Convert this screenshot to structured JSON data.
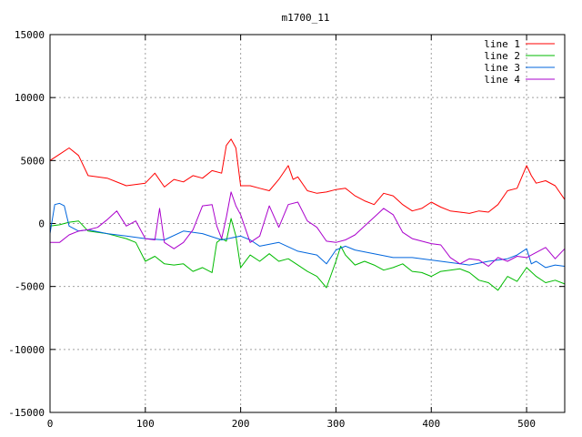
{
  "chart_data": {
    "type": "line",
    "title": "m1700_11",
    "xlim": [
      0,
      540
    ],
    "ylim": [
      -15000,
      15000
    ],
    "x_ticks": [
      0,
      100,
      200,
      300,
      400,
      500
    ],
    "y_ticks": [
      -15000,
      -10000,
      -5000,
      0,
      5000,
      10000,
      15000
    ],
    "grid": true,
    "legend_position": "top-right",
    "series": [
      {
        "name": "line 1",
        "color": "#ff0000",
        "x": [
          0,
          10,
          20,
          30,
          40,
          60,
          80,
          100,
          110,
          120,
          130,
          140,
          150,
          160,
          170,
          180,
          185,
          190,
          195,
          200,
          210,
          220,
          230,
          240,
          250,
          255,
          260,
          270,
          280,
          290,
          300,
          310,
          320,
          330,
          340,
          350,
          360,
          370,
          380,
          390,
          400,
          410,
          420,
          430,
          440,
          450,
          460,
          470,
          480,
          490,
          500,
          505,
          510,
          520,
          530,
          540
        ],
        "y": [
          5000,
          5500,
          6000,
          5400,
          3800,
          3600,
          3000,
          3200,
          4000,
          2900,
          3500,
          3300,
          3800,
          3600,
          4200,
          4000,
          6200,
          6700,
          6000,
          3000,
          3000,
          2800,
          2600,
          3500,
          4600,
          3500,
          3700,
          2600,
          2400,
          2500,
          2700,
          2800,
          2200,
          1800,
          1500,
          2400,
          2200,
          1500,
          1000,
          1200,
          1700,
          1300,
          1000,
          900,
          800,
          1000,
          900,
          1500,
          2600,
          2800,
          4600,
          3800,
          3200,
          3400,
          3000,
          1900
        ]
      },
      {
        "name": "line 2",
        "color": "#00bb00",
        "x": [
          0,
          10,
          20,
          30,
          40,
          60,
          80,
          90,
          100,
          110,
          120,
          130,
          140,
          150,
          160,
          170,
          175,
          180,
          185,
          190,
          195,
          200,
          210,
          220,
          230,
          240,
          250,
          260,
          270,
          280,
          290,
          300,
          305,
          310,
          320,
          330,
          340,
          350,
          360,
          370,
          380,
          390,
          400,
          410,
          420,
          430,
          440,
          450,
          460,
          470,
          480,
          490,
          500,
          510,
          520,
          530,
          540
        ],
        "y": [
          -200,
          -100,
          100,
          200,
          -600,
          -800,
          -1200,
          -1500,
          -3000,
          -2600,
          -3200,
          -3300,
          -3200,
          -3800,
          -3500,
          -3900,
          -1500,
          -1200,
          -1400,
          400,
          -1000,
          -3500,
          -2500,
          -3000,
          -2400,
          -3000,
          -2800,
          -3300,
          -3800,
          -4200,
          -5100,
          -3000,
          -1800,
          -2500,
          -3300,
          -3000,
          -3300,
          -3700,
          -3500,
          -3200,
          -3800,
          -3900,
          -4200,
          -3800,
          -3700,
          -3600,
          -3900,
          -4500,
          -4700,
          -5300,
          -4200,
          -4600,
          -3500,
          -4200,
          -4700,
          -4500,
          -4800
        ]
      },
      {
        "name": "line 3",
        "color": "#0066dd",
        "x": [
          0,
          5,
          10,
          15,
          20,
          30,
          40,
          60,
          80,
          100,
          120,
          140,
          160,
          180,
          200,
          210,
          220,
          240,
          260,
          280,
          290,
          300,
          310,
          320,
          340,
          360,
          380,
          400,
          420,
          440,
          460,
          480,
          490,
          500,
          505,
          510,
          520,
          530,
          540
        ],
        "y": [
          -800,
          1500,
          1600,
          1400,
          -200,
          -600,
          -500,
          -800,
          -1000,
          -1200,
          -1300,
          -600,
          -800,
          -1300,
          -1000,
          -1300,
          -1800,
          -1500,
          -2200,
          -2500,
          -3200,
          -2100,
          -1800,
          -2100,
          -2400,
          -2700,
          -2700,
          -2900,
          -3100,
          -3300,
          -3000,
          -2800,
          -2500,
          -2000,
          -3200,
          -3000,
          -3500,
          -3300,
          -3400
        ]
      },
      {
        "name": "line 4",
        "color": "#aa00cc",
        "x": [
          0,
          10,
          20,
          30,
          40,
          50,
          60,
          70,
          80,
          90,
          100,
          110,
          115,
          120,
          130,
          140,
          150,
          160,
          170,
          175,
          180,
          185,
          190,
          195,
          200,
          210,
          220,
          230,
          240,
          250,
          260,
          270,
          280,
          290,
          300,
          310,
          320,
          330,
          340,
          350,
          360,
          370,
          380,
          390,
          400,
          410,
          420,
          430,
          440,
          450,
          460,
          470,
          480,
          490,
          500,
          510,
          520,
          530,
          540
        ],
        "y": [
          -1500,
          -1500,
          -900,
          -600,
          -500,
          -300,
          300,
          1000,
          -200,
          200,
          -1200,
          -1300,
          1200,
          -1500,
          -2000,
          -1500,
          -500,
          1400,
          1500,
          -200,
          -1200,
          500,
          2500,
          1400,
          700,
          -1500,
          -1000,
          1400,
          -300,
          1500,
          1700,
          200,
          -300,
          -1400,
          -1500,
          -1300,
          -900,
          -200,
          500,
          1200,
          700,
          -700,
          -1200,
          -1400,
          -1600,
          -1700,
          -2700,
          -3200,
          -2800,
          -2900,
          -3400,
          -2700,
          -3000,
          -2600,
          -2700,
          -2300,
          -1900,
          -2800,
          -2000
        ]
      }
    ]
  }
}
